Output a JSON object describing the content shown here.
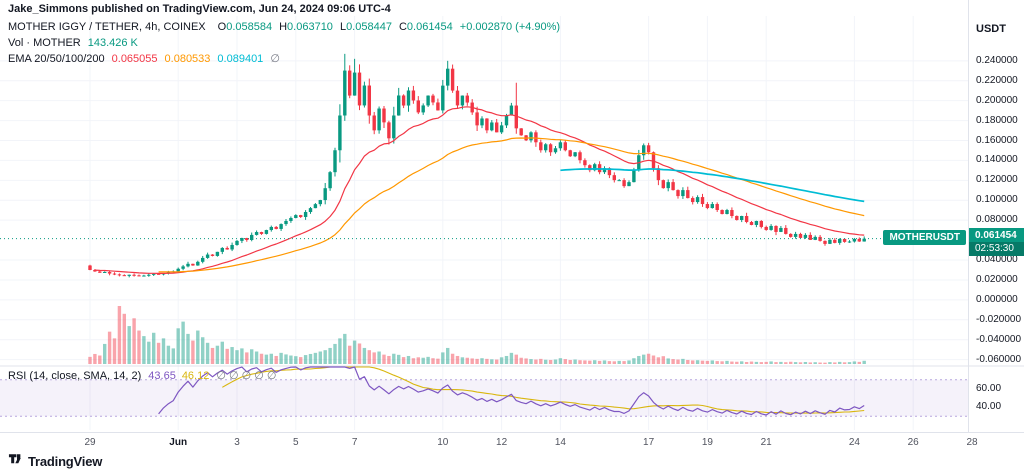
{
  "header": {
    "attribution": "Jake_Simmons published on TradingView.com, Jun 24, 2024 09:06 UTC-4"
  },
  "legend": {
    "symbol_line": {
      "title": "MOTHER IGGY / TETHER, 4h, COINEX",
      "o_label": "O",
      "o_value": "0.058584",
      "h_label": "H",
      "h_value": "0.063710",
      "l_label": "L",
      "l_value": "0.058447",
      "c_label": "C",
      "c_value": "0.061454",
      "change": "+0.002870 (+4.90%)"
    },
    "volume_line": {
      "title": "Vol · MOTHER",
      "value": "143.426 K"
    },
    "ema_line": {
      "title": "EMA 20/50/100/200",
      "ema20": "0.065055",
      "ema50": "0.080533",
      "ema100": "0.089401",
      "ema200": "∅"
    }
  },
  "rsi_legend": {
    "title": "RSI (14, close, SMA, 14, 2)",
    "value": "43.65",
    "ma_value": "46.12",
    "hidden": "∅ ∅ ∅ ∅ ∅"
  },
  "price_axis": {
    "currency": "USDT",
    "ticks": [
      "0.240000",
      "0.220000",
      "0.200000",
      "0.180000",
      "0.160000",
      "0.140000",
      "0.120000",
      "0.100000",
      "0.080000",
      "0.040000",
      "0.020000",
      "0.000000",
      "-0.020000",
      "-0.040000",
      "-0.060000"
    ],
    "rsi_ticks": [
      {
        "text": "60.00",
        "value": 60
      },
      {
        "text": "40.00",
        "value": 40
      }
    ]
  },
  "price_badge": {
    "symbol_label": "MOTHERUSDT",
    "price": "0.061454",
    "countdown": "02:53:30"
  },
  "time_axis": {
    "labels": [
      {
        "text": "29",
        "bar": 0
      },
      {
        "text": "Jun",
        "bar": 18,
        "bold": true
      },
      {
        "text": "3",
        "bar": 30
      },
      {
        "text": "5",
        "bar": 42
      },
      {
        "text": "7",
        "bar": 54
      },
      {
        "text": "10",
        "bar": 72
      },
      {
        "text": "12",
        "bar": 84
      },
      {
        "text": "14",
        "bar": 96
      },
      {
        "text": "17",
        "bar": 114
      },
      {
        "text": "19",
        "bar": 126
      },
      {
        "text": "21",
        "bar": 138
      },
      {
        "text": "24",
        "bar": 156
      },
      {
        "text": "26",
        "bar": 168
      },
      {
        "text": "28",
        "bar": 180
      }
    ]
  },
  "footer": {
    "brand": "TradingView"
  },
  "colors": {
    "up": "#089981",
    "down": "#F23645",
    "vol_up": "rgba(8,153,129,0.45)",
    "vol_down": "rgba(242,54,69,0.45)",
    "ema20": "#F23645",
    "ema50": "#FF9800",
    "ema100": "#00BCD4",
    "rsi": "#7E57C2",
    "rsi_ma": "#D9B60E",
    "rsi_band": "rgba(126,87,194,0.08)",
    "rsi_band_line": "#B7A6DD",
    "badge_bg": "#089981",
    "countdown_bg": "#067A67",
    "axis_text": "#131722",
    "muted_text": "#787B86",
    "grid": "#F2F4F9",
    "separator": "#E0E3EB",
    "background": "#FFFFFF"
  },
  "chart_data": {
    "type": "candlestick",
    "symbol": "MOTHERUSDT",
    "title": "MOTHER IGGY / TETHER",
    "exchange": "COINEX",
    "interval": "4h",
    "start_date": "May 29",
    "end_date": "Jun 24",
    "bars_per_day": 6,
    "price_axis_visible_range": [
      -0.0685,
      0.285
    ],
    "first_open": 0.0345,
    "last_bar": {
      "open": 0.058584,
      "high": 0.06371,
      "low": 0.058447,
      "close": 0.061454,
      "change": 0.00287,
      "change_pct": 4.9
    },
    "last_volume_k": 143.426,
    "closes": [
      0.03,
      0.0285,
      0.0272,
      0.028,
      0.0264,
      0.0256,
      0.0248,
      0.0241,
      0.0252,
      0.0246,
      0.0238,
      0.0244,
      0.0252,
      0.0261,
      0.0255,
      0.0268,
      0.0278,
      0.0286,
      0.0312,
      0.0336,
      0.0362,
      0.0345,
      0.0382,
      0.0421,
      0.0455,
      0.0441,
      0.0482,
      0.0521,
      0.0506,
      0.0551,
      0.0592,
      0.0621,
      0.0601,
      0.0652,
      0.0681,
      0.0662,
      0.0701,
      0.0732,
      0.0712,
      0.0761,
      0.0792,
      0.0822,
      0.0851,
      0.0832,
      0.0882,
      0.0921,
      0.0961,
      0.1002,
      0.1121,
      0.1282,
      0.1502,
      0.1851,
      0.2302,
      0.2051,
      0.2282,
      0.1952,
      0.2152,
      0.1851,
      0.1702,
      0.1921,
      0.1782,
      0.1622,
      0.1851,
      0.2052,
      0.1951,
      0.2102,
      0.2002,
      0.1882,
      0.1952,
      0.2051,
      0.1982,
      0.1902,
      0.2151,
      0.2321,
      0.2101,
      0.1952,
      0.2051,
      0.1981,
      0.1882,
      0.1752,
      0.1821,
      0.1702,
      0.1781,
      0.1682,
      0.1752,
      0.1851,
      0.1951,
      0.1722,
      0.1652,
      0.1602,
      0.1682,
      0.1582,
      0.1502,
      0.1562,
      0.1482,
      0.1522,
      0.1582,
      0.1502,
      0.1442,
      0.1482,
      0.1402,
      0.1352,
      0.1302,
      0.1362,
      0.1282,
      0.1322,
      0.1252,
      0.1202,
      0.1202,
      0.1142,
      0.1182,
      0.1302,
      0.1452,
      0.1552,
      0.1482,
      0.1322,
      0.1202,
      0.1122,
      0.1182,
      0.1102,
      0.1042,
      0.1102,
      0.1022,
      0.0982,
      0.1032,
      0.0962,
      0.0922,
      0.0962,
      0.0902,
      0.0862,
      0.0902,
      0.0842,
      0.0802,
      0.0842,
      0.0782,
      0.0752,
      0.0792,
      0.0732,
      0.0702,
      0.0742,
      0.0682,
      0.0722,
      0.0662,
      0.0632,
      0.0662,
      0.0622,
      0.0652,
      0.0602,
      0.0632,
      0.0592,
      0.0562,
      0.0602,
      0.0572,
      0.0612,
      0.0582,
      0.0586,
      0.0612,
      0.058584,
      0.061454
    ],
    "volumes_k": [
      320,
      450,
      380,
      900,
      1450,
      1150,
      2600,
      2250,
      1700,
      2050,
      1500,
      1250,
      1000,
      1400,
      950,
      1150,
      820,
      700,
      1600,
      1900,
      1350,
      1050,
      1500,
      1200,
      950,
      720,
      820,
      1000,
      680,
      760,
      620,
      700,
      520,
      660,
      560,
      460,
      420,
      460,
      360,
      500,
      430,
      380,
      350,
      310,
      400,
      450,
      500,
      560,
      620,
      720,
      900,
      1150,
      1350,
      820,
      1050,
      920,
      720,
      620,
      520,
      560,
      420,
      360,
      460,
      410,
      310,
      360,
      260,
      300,
      280,
      320,
      260,
      240,
      520,
      720,
      460,
      360,
      300,
      280,
      250,
      230,
      260,
      230,
      210,
      200,
      300,
      360,
      500,
      420,
      280,
      250,
      220,
      200,
      230,
      190,
      180,
      200,
      260,
      220,
      180,
      200,
      170,
      160,
      150,
      170,
      140,
      160,
      130,
      120,
      140,
      130,
      160,
      260,
      360,
      420,
      460,
      380,
      300,
      350,
      250,
      220,
      200,
      230,
      180,
      160,
      170,
      150,
      140,
      160,
      130,
      120,
      140,
      110,
      100,
      120,
      90,
      110,
      95,
      85,
      95,
      115,
      85,
      95,
      80,
      100,
      85,
      75,
      90,
      70,
      80,
      65,
      60,
      85,
      70,
      95,
      75,
      85,
      115,
      95,
      143.426
    ],
    "wick_overrides": {
      "52": [
        0.247,
        null
      ],
      "54": [
        0.242,
        null
      ],
      "73": [
        0.24,
        null
      ],
      "87": [
        0.218,
        null
      ],
      "158": [
        0.06371,
        0.058447
      ]
    },
    "overlays": {
      "ema_periods": [
        20,
        50,
        100
      ],
      "ema_draw_from": [
        1,
        14,
        96
      ],
      "ema_last_values": [
        0.065055,
        0.080533,
        0.089401
      ]
    },
    "rsi": {
      "period": 14,
      "ma_period": 14,
      "upper": 70,
      "lower": 30,
      "last_value": 43.65,
      "last_ma": 46.12
    }
  }
}
